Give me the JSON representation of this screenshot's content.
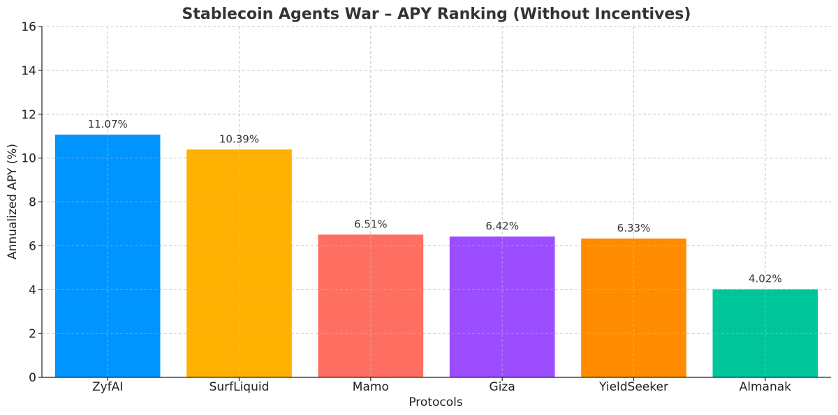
{
  "chart_data": {
    "type": "bar",
    "title": "Stablecoin Agents War – APY Ranking (Without Incentives)",
    "xlabel": "Protocols",
    "ylabel": "Annualized APY (%)",
    "ylim": [
      0,
      16
    ],
    "yticks": [
      0,
      2,
      4,
      6,
      8,
      10,
      12,
      14,
      16
    ],
    "grid": true,
    "categories": [
      "ZyfAI",
      "SurfLiquid",
      "Mamo",
      "Giza",
      "YieldSeeker",
      "Almanak"
    ],
    "values": [
      11.07,
      10.39,
      6.51,
      6.42,
      6.33,
      4.02
    ],
    "data_labels": [
      "11.07%",
      "10.39%",
      "6.51%",
      "6.42%",
      "6.33%",
      "4.02%"
    ],
    "colors": [
      "#0094ff",
      "#ffb000",
      "#ff6f61",
      "#9b4dff",
      "#ff8c00",
      "#00c49a"
    ]
  }
}
